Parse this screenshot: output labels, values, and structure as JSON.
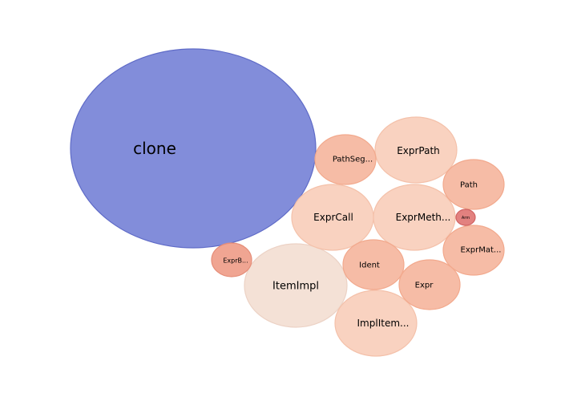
{
  "chart_data": {
    "type": "bubble",
    "title": "",
    "bubbles": [
      {
        "label": "clone",
        "value": 100,
        "color": "#7b87d8",
        "stroke": "#5f6bc7"
      },
      {
        "label": "ItemImpl",
        "value": 18,
        "color": "#f3dfd4",
        "stroke": "#ecd2c5"
      },
      {
        "label": "ExprPath",
        "value": 17,
        "color": "#f9d0bd",
        "stroke": "#f4c1aa"
      },
      {
        "label": "ExprCall",
        "value": 17,
        "color": "#f9d0bd",
        "stroke": "#f4c1aa"
      },
      {
        "label": "ExprMeth...",
        "value": 17,
        "color": "#f9d0bd",
        "stroke": "#f4c1aa"
      },
      {
        "label": "ImplItem...",
        "value": 17,
        "color": "#f9d0bd",
        "stroke": "#f4c1aa"
      },
      {
        "label": "PathSeg...",
        "value": 9.5,
        "color": "#f6b8a1",
        "stroke": "#f2a98d"
      },
      {
        "label": "Path",
        "value": 9.5,
        "color": "#f6b8a1",
        "stroke": "#f2a98d"
      },
      {
        "label": "ExprMat...",
        "value": 9.5,
        "color": "#f6b8a1",
        "stroke": "#f2a98d"
      },
      {
        "label": "Ident",
        "value": 9.5,
        "color": "#f6b8a1",
        "stroke": "#f2a98d"
      },
      {
        "label": "Expr",
        "value": 9.5,
        "color": "#f6b8a1",
        "stroke": "#f2a98d"
      },
      {
        "label": "ExprB...",
        "value": 4.3,
        "color": "#efa08c",
        "stroke": "#e58d78"
      },
      {
        "label": "Arm",
        "value": 0.7,
        "color": "#e07a78",
        "stroke": "#d06262"
      }
    ]
  }
}
